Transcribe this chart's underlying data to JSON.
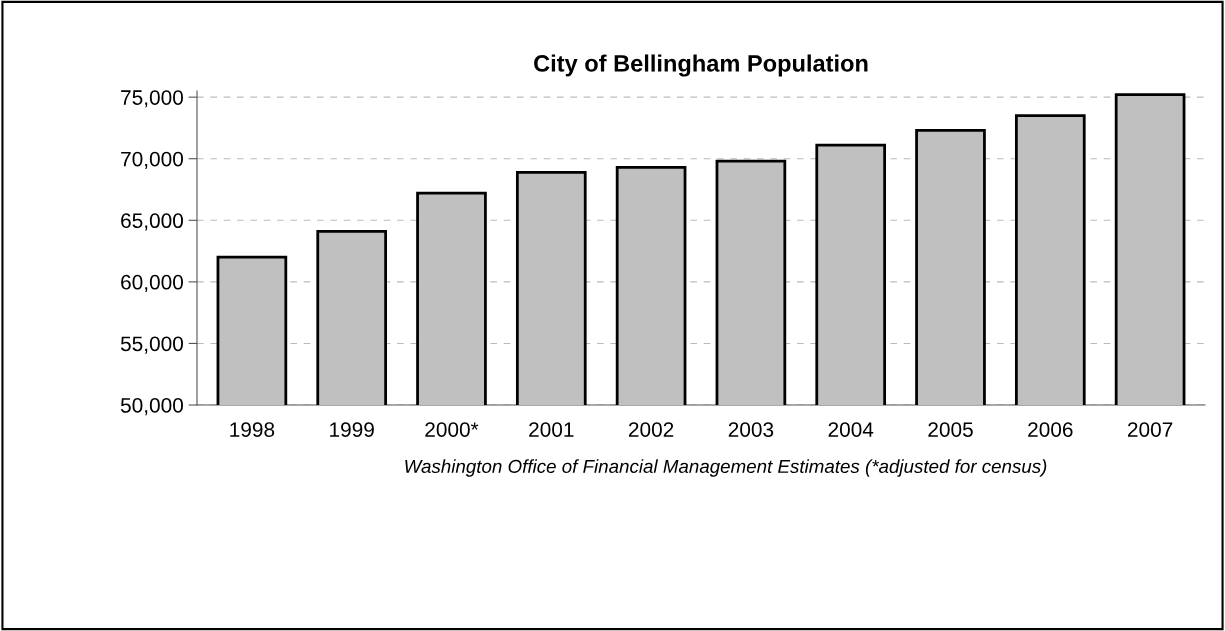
{
  "chart_data": {
    "type": "bar",
    "title": "City of Bellingham Population",
    "categories": [
      "1998",
      "1999",
      "2000*",
      "2001",
      "2002",
      "2003",
      "2004",
      "2005",
      "2006",
      "2007"
    ],
    "values": [
      62000,
      64100,
      67200,
      68900,
      69300,
      69800,
      71100,
      72300,
      73500,
      75200
    ],
    "color": "#c0c0c0",
    "ylim": [
      50000,
      75500
    ],
    "yticks": [
      {
        "value": 50000,
        "label": "50,000"
      },
      {
        "value": 55000,
        "label": "55,000"
      },
      {
        "value": 60000,
        "label": "60,000"
      },
      {
        "value": 65000,
        "label": "65,000"
      },
      {
        "value": 70000,
        "label": "70,000"
      },
      {
        "value": 75000,
        "label": "75,000"
      }
    ],
    "grid": "y",
    "annotations": [
      "Washington Office of Financial Management Estimates (*adjusted for census)"
    ]
  }
}
